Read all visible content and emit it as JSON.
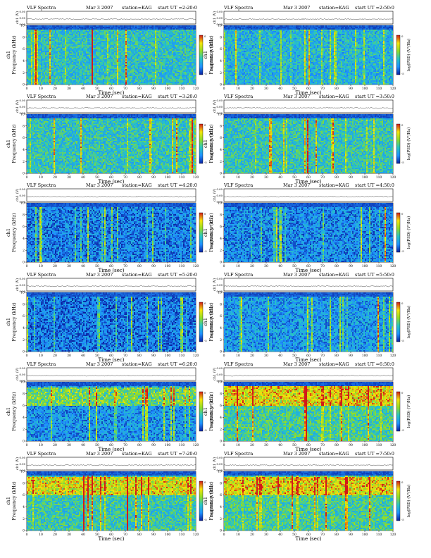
{
  "header_labels": {
    "product": "VLF Spectra",
    "date": "Mar 3 2007",
    "station": "station=KAG",
    "start_prefix": "start  UT ="
  },
  "axis_labels": {
    "time": "Time (sec)",
    "frequency": "Frequency (kHz)",
    "channel": "ch1",
    "amplitude": "ch1 (V)",
    "colorbar": "log(PSD) (V²/Hz)"
  },
  "colors": {
    "low": "#0a1f9e",
    "mid_low": "#1e90ff",
    "mid": "#27c4c4",
    "mid_high": "#8fdc28",
    "high": "#f5e50a",
    "peak": "#d11a1a"
  },
  "chart_data": [
    {
      "type": "heatmap",
      "start_time": "2:20:0",
      "x_label": "Time (sec)",
      "y_label": "Frequency (kHz)",
      "xlim": [
        0,
        120
      ],
      "ylim": [
        0,
        10
      ],
      "x_ticks": [
        0,
        10,
        20,
        30,
        40,
        50,
        60,
        70,
        80,
        90,
        100,
        110,
        120
      ],
      "y_ticks": [
        0,
        2,
        4,
        6,
        8,
        10
      ],
      "amp_ticks": [
        "0.00",
        "0.00",
        "0.00"
      ],
      "colorbar_ticks": [
        "0",
        "-5"
      ],
      "mean_level": 0.38,
      "emission_band_khz": null
    },
    {
      "type": "heatmap",
      "start_time": "2:50:0",
      "x_label": "Time (sec)",
      "y_label": "Frequency (kHz)",
      "xlim": [
        0,
        120
      ],
      "ylim": [
        0,
        10
      ],
      "x_ticks": [
        0,
        10,
        20,
        30,
        40,
        50,
        60,
        70,
        80,
        90,
        100,
        110,
        120
      ],
      "y_ticks": [
        0,
        2,
        4,
        6,
        8,
        10
      ],
      "amp_ticks": [
        "0.00",
        "0.00",
        "0.00"
      ],
      "colorbar_ticks": [
        "0",
        "-5"
      ],
      "mean_level": 0.33,
      "emission_band_khz": null
    },
    {
      "type": "heatmap",
      "start_time": "3:20:0",
      "x_label": "Time (sec)",
      "y_label": "Frequency (kHz)",
      "xlim": [
        0,
        120
      ],
      "ylim": [
        0,
        10
      ],
      "x_ticks": [
        0,
        10,
        20,
        30,
        40,
        50,
        60,
        70,
        80,
        90,
        100,
        110,
        120
      ],
      "y_ticks": [
        0,
        2,
        4,
        6,
        8,
        10
      ],
      "amp_ticks": [
        "0.00",
        "0.00",
        "0.00"
      ],
      "colorbar_ticks": [
        "0",
        "-5"
      ],
      "mean_level": 0.4,
      "emission_band_khz": null
    },
    {
      "type": "heatmap",
      "start_time": "3:50:0",
      "x_label": "Time (sec)",
      "y_label": "Frequency (kHz)",
      "xlim": [
        0,
        120
      ],
      "ylim": [
        0,
        10
      ],
      "x_ticks": [
        0,
        10,
        20,
        30,
        40,
        50,
        60,
        70,
        80,
        90,
        100,
        110,
        120
      ],
      "y_ticks": [
        0,
        2,
        4,
        6,
        8,
        10
      ],
      "amp_ticks": [
        "0.00",
        "0.00",
        "0.00"
      ],
      "colorbar_ticks": [
        "0",
        "-5"
      ],
      "mean_level": 0.4,
      "emission_band_khz": null
    },
    {
      "type": "heatmap",
      "start_time": "4:20:0",
      "x_label": "Time (sec)",
      "y_label": "Frequency (kHz)",
      "xlim": [
        0,
        120
      ],
      "ylim": [
        0,
        10
      ],
      "x_ticks": [
        0,
        10,
        20,
        30,
        40,
        50,
        60,
        70,
        80,
        90,
        100,
        110,
        120
      ],
      "y_ticks": [
        0,
        2,
        4,
        6,
        8,
        10
      ],
      "amp_ticks": [
        "0.00",
        "0.00",
        "0.00"
      ],
      "colorbar_ticks": [
        "0",
        "-5"
      ],
      "mean_level": 0.18,
      "emission_band_khz": null
    },
    {
      "type": "heatmap",
      "start_time": "4:50:0",
      "x_label": "Time (sec)",
      "y_label": "Frequency (kHz)",
      "xlim": [
        0,
        120
      ],
      "ylim": [
        0,
        10
      ],
      "x_ticks": [
        0,
        10,
        20,
        30,
        40,
        50,
        60,
        70,
        80,
        90,
        100,
        110,
        120
      ],
      "y_ticks": [
        0,
        2,
        4,
        6,
        8,
        10
      ],
      "amp_ticks": [
        "0.00",
        "0.00",
        "0.00"
      ],
      "colorbar_ticks": [
        "0",
        "-5"
      ],
      "mean_level": 0.2,
      "emission_band_khz": null
    },
    {
      "type": "heatmap",
      "start_time": "5:20:0",
      "x_label": "Time (sec)",
      "y_label": "Frequency (kHz)",
      "xlim": [
        0,
        120
      ],
      "ylim": [
        0,
        10
      ],
      "x_ticks": [
        0,
        10,
        20,
        30,
        40,
        50,
        60,
        70,
        80,
        90,
        100,
        110,
        120
      ],
      "y_ticks": [
        0,
        2,
        4,
        6,
        8,
        10
      ],
      "amp_ticks": [
        "0.00",
        "0.00",
        "0.00"
      ],
      "colorbar_ticks": [
        "0",
        "-5"
      ],
      "mean_level": 0.16,
      "emission_band_khz": null
    },
    {
      "type": "heatmap",
      "start_time": "5:50:0",
      "x_label": "Time (sec)",
      "y_label": "Frequency (kHz)",
      "xlim": [
        0,
        120
      ],
      "ylim": [
        0,
        10
      ],
      "x_ticks": [
        0,
        10,
        20,
        30,
        40,
        50,
        60,
        70,
        80,
        90,
        100,
        110,
        120
      ],
      "y_ticks": [
        0,
        2,
        4,
        6,
        8,
        10
      ],
      "amp_ticks": [
        "0.00",
        "0.00",
        "0.00"
      ],
      "colorbar_ticks": [
        "0",
        "-5"
      ],
      "mean_level": 0.24,
      "emission_band_khz": null
    },
    {
      "type": "heatmap",
      "start_time": "6:20:0",
      "x_label": "Time (sec)",
      "y_label": "Frequency (kHz)",
      "xlim": [
        0,
        120
      ],
      "ylim": [
        0,
        10
      ],
      "x_ticks": [
        0,
        10,
        20,
        30,
        40,
        50,
        60,
        70,
        80,
        90,
        100,
        110,
        120
      ],
      "y_ticks": [
        0,
        2,
        4,
        6,
        8,
        10
      ],
      "amp_ticks": [
        "0.00",
        "0.00",
        "0.00"
      ],
      "colorbar_ticks": [
        "0",
        "-5"
      ],
      "mean_level": 0.22,
      "emission_band_khz": [
        6,
        9
      ]
    },
    {
      "type": "heatmap",
      "start_time": "6:50:0",
      "x_label": "Time (sec)",
      "y_label": "Frequency (kHz)",
      "xlim": [
        0,
        120
      ],
      "ylim": [
        0,
        10
      ],
      "x_ticks": [
        0,
        10,
        20,
        30,
        40,
        50,
        60,
        70,
        80,
        90,
        100,
        110,
        120
      ],
      "y_ticks": [
        0,
        2,
        4,
        6,
        8,
        10
      ],
      "amp_ticks": [
        "0.00",
        "0.00",
        "0.00"
      ],
      "colorbar_ticks": [
        "0",
        "-5"
      ],
      "mean_level": 0.45,
      "emission_band_khz": [
        6,
        9.5
      ]
    },
    {
      "type": "heatmap",
      "start_time": "7:20:0",
      "x_label": "Time (sec)",
      "y_label": "Frequency (kHz)",
      "xlim": [
        0,
        120
      ],
      "ylim": [
        0,
        10
      ],
      "x_ticks": [
        0,
        10,
        20,
        30,
        40,
        50,
        60,
        70,
        80,
        90,
        100,
        110,
        120
      ],
      "y_ticks": [
        0,
        2,
        4,
        6,
        8,
        10
      ],
      "amp_ticks": [
        "0.00",
        "0.00",
        "0.00"
      ],
      "colorbar_ticks": [
        "0",
        "-5"
      ],
      "mean_level": 0.42,
      "emission_band_khz": [
        6,
        9
      ]
    },
    {
      "type": "heatmap",
      "start_time": "7:50:0",
      "x_label": "Time (sec)",
      "y_label": "Frequency (kHz)",
      "xlim": [
        0,
        120
      ],
      "ylim": [
        0,
        10
      ],
      "x_ticks": [
        0,
        10,
        20,
        30,
        40,
        50,
        60,
        70,
        80,
        90,
        100,
        110,
        120
      ],
      "y_ticks": [
        0,
        2,
        4,
        6,
        8,
        10
      ],
      "amp_ticks": [
        "0.00",
        "0.00",
        "0.00"
      ],
      "colorbar_ticks": [
        "0",
        "-5"
      ],
      "mean_level": 0.45,
      "emission_band_khz": [
        6,
        9
      ]
    }
  ]
}
